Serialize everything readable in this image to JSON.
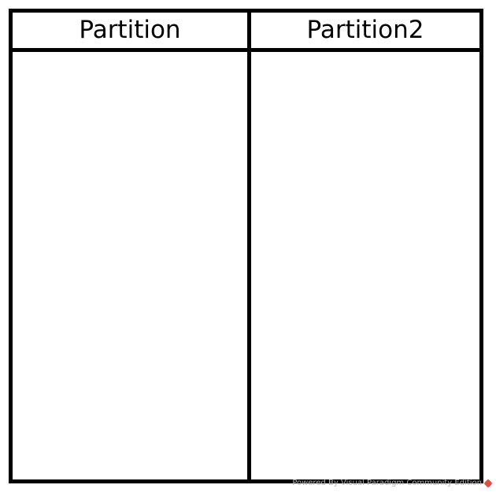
{
  "diagram": {
    "partitions": [
      {
        "name": "Partition"
      },
      {
        "name": "Partition2"
      }
    ]
  },
  "watermark": {
    "text": "Powered By  Visual Paradigm Community Edition",
    "logo_icon": "visual-paradigm-logo-icon",
    "logo_color": "#e64b3c"
  }
}
